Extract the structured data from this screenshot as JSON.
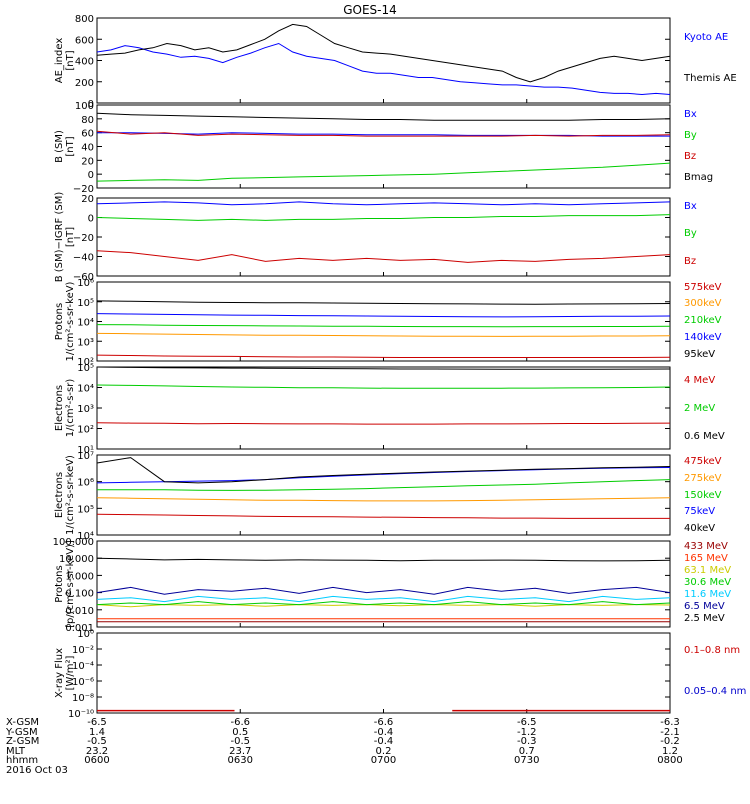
{
  "chart_data": {
    "type": "line",
    "title": "GOES-14",
    "x_ticks": [
      "0600",
      "0630",
      "0700",
      "0730",
      "0800"
    ],
    "x_range_hhmm": [
      "0600",
      "0800"
    ],
    "panels": [
      {
        "ylabel": [
          "AE_index",
          "[nT]"
        ],
        "scale": "linear",
        "ylim": [
          0,
          800
        ],
        "yticks": [
          "800",
          "600",
          "400",
          "200",
          "0"
        ],
        "series": [
          {
            "name": "Kyoto AE",
            "color": "#0000ff",
            "values": [
              480,
              500,
              540,
              520,
              480,
              460,
              430,
              440,
              420,
              380,
              430,
              470,
              520,
              560,
              480,
              440,
              420,
              400,
              350,
              300,
              280,
              280,
              260,
              240,
              240,
              220,
              200,
              190,
              180,
              170,
              170,
              160,
              150,
              150,
              140,
              120,
              100,
              90,
              90,
              80,
              90,
              80
            ]
          },
          {
            "name": "Themis AE",
            "color": "#000000",
            "values": [
              450,
              460,
              470,
              500,
              520,
              560,
              540,
              500,
              520,
              480,
              500,
              550,
              600,
              680,
              740,
              720,
              640,
              560,
              520,
              480,
              470,
              460,
              440,
              420,
              400,
              380,
              360,
              340,
              320,
              300,
              240,
              200,
              240,
              300,
              340,
              380,
              420,
              440,
              420,
              400,
              420,
              440
            ]
          }
        ]
      },
      {
        "ylabel": [
          "B (SM)",
          "[nT]"
        ],
        "scale": "linear",
        "ylim": [
          -20,
          100
        ],
        "yticks": [
          "100",
          "80",
          "60",
          "40",
          "20",
          "0",
          "−20"
        ],
        "series": [
          {
            "name": "Bx",
            "color": "#0000ff",
            "values": [
              60,
              60,
              59,
              58,
              60,
              59,
              58,
              58,
              57,
              57,
              57,
              56,
              56,
              56,
              56,
              55,
              55,
              55
            ]
          },
          {
            "name": "By",
            "color": "#00cc00",
            "values": [
              -10,
              -9,
              -8,
              -9,
              -6,
              -5,
              -4,
              -3,
              -2,
              -1,
              0,
              2,
              4,
              6,
              8,
              10,
              13,
              16
            ]
          },
          {
            "name": "Bz",
            "color": "#cc0000",
            "values": [
              62,
              58,
              60,
              56,
              58,
              57,
              56,
              56,
              55,
              55,
              55,
              55,
              55,
              56,
              55,
              56,
              56,
              57
            ]
          },
          {
            "name": "Bmag",
            "color": "#000000",
            "values": [
              88,
              86,
              85,
              84,
              83,
              82,
              81,
              80,
              79,
              79,
              78,
              78,
              78,
              78,
              78,
              79,
              79,
              80
            ]
          }
        ]
      },
      {
        "ylabel": [
          "B (SM)−IGRF (SM)",
          "[nT]"
        ],
        "scale": "linear",
        "ylim": [
          -60,
          20
        ],
        "yticks": [
          "20",
          "0",
          "−20",
          "−40",
          "−60"
        ],
        "series": [
          {
            "name": "Bx",
            "color": "#0000ff",
            "values": [
              14,
              15,
              16,
              15,
              13,
              14,
              16,
              14,
              13,
              14,
              15,
              14,
              13,
              14,
              13,
              14,
              15,
              16
            ]
          },
          {
            "name": "By",
            "color": "#00cc00",
            "values": [
              0,
              -1,
              -2,
              -3,
              -2,
              -3,
              -2,
              -2,
              -1,
              -1,
              0,
              0,
              1,
              1,
              2,
              2,
              2,
              3
            ]
          },
          {
            "name": "Bz",
            "color": "#cc0000",
            "values": [
              -34,
              -36,
              -40,
              -44,
              -38,
              -45,
              -42,
              -44,
              -42,
              -44,
              -43,
              -46,
              -44,
              -45,
              -43,
              -42,
              -40,
              -38
            ]
          }
        ]
      },
      {
        "ylabel": [
          "Protons",
          "1/(cm²-s-sr-keV)"
        ],
        "scale": "log",
        "ylim": [
          100,
          1000000
        ],
        "yticks": [
          "10⁶",
          "10⁵",
          "10⁴",
          "10³",
          "10²"
        ],
        "series": [
          {
            "name": "575keV",
            "color": "#cc0000",
            "values": [
              200,
              190,
              180,
              175,
              170,
              165,
              160,
              160,
              155,
              150,
              150,
              150,
              150,
              150,
              150,
              150,
              150,
              155
            ]
          },
          {
            "name": "300keV",
            "color": "#ff9900",
            "values": [
              2500,
              2400,
              2300,
              2200,
              2100,
              2000,
              2000,
              1950,
              1900,
              1850,
              1800,
              1800,
              1750,
              1800,
              1800,
              1850,
              1850,
              1900
            ]
          },
          {
            "name": "210keV",
            "color": "#00cc00",
            "values": [
              7000,
              6800,
              6500,
              6300,
              6200,
              6000,
              5900,
              5800,
              5700,
              5600,
              5500,
              5500,
              5400,
              5500,
              5500,
              5600,
              5600,
              5700
            ]
          },
          {
            "name": "140keV",
            "color": "#0000ff",
            "values": [
              25000,
              24000,
              23000,
              22000,
              21000,
              20500,
              20000,
              19500,
              19000,
              18500,
              18000,
              17500,
              17000,
              17500,
              18000,
              18500,
              18500,
              19000
            ]
          },
          {
            "name": "95keV",
            "color": "#000000",
            "values": [
              110000,
              105000,
              100000,
              95000,
              92000,
              90000,
              88000,
              86000,
              84000,
              82000,
              80000,
              78000,
              76000,
              75000,
              77000,
              78000,
              80000,
              82000
            ]
          }
        ]
      },
      {
        "ylabel": [
          "Electrons",
          "1/(cm²-s-sr)"
        ],
        "scale": "log",
        "ylim": [
          1,
          100000
        ],
        "yticks": [
          "10⁵",
          "10⁴",
          "10³",
          "10²",
          "10¹"
        ],
        "series": [
          {
            "name": "4 MeV",
            "color": "#cc0000",
            "values": [
              40,
              38,
              37,
              35,
              36,
              35,
              34,
              34,
              33,
              33,
              33,
              34,
              34,
              35,
              36,
              36,
              37,
              38
            ]
          },
          {
            "name": "2 MeV",
            "color": "#00cc00",
            "values": [
              8000,
              7500,
              7000,
              6500,
              6000,
              5800,
              5500,
              5400,
              5200,
              5000,
              5000,
              5000,
              5100,
              5200,
              5300,
              5500,
              5600,
              6000
            ]
          },
          {
            "name": "0.6 MeV",
            "color": "#000000",
            "values": [
              100000,
              95000,
              90000,
              88000,
              86000,
              84000,
              82000,
              80000,
              78000,
              76000,
              75000,
              74000,
              73000,
              72000,
              72000,
              73000,
              74000,
              75000
            ]
          }
        ]
      },
      {
        "ylabel": [
          "Electrons",
          "1/(cm²-s-sr-keV)"
        ],
        "scale": "log",
        "ylim": [
          10000,
          10000000
        ],
        "yticks": [
          "10⁷",
          "10⁶",
          "10⁵",
          "10⁴"
        ],
        "series": [
          {
            "name": "475keV",
            "color": "#cc0000",
            "values": [
              60000,
              58000,
              56000,
              54000,
              52000,
              50000,
              49000,
              48000,
              47000,
              46000,
              45000,
              44000,
              43000,
              43000,
              42000,
              42000,
              42000,
              42000
            ]
          },
          {
            "name": "275keV",
            "color": "#ff9900",
            "values": [
              250000,
              240000,
              230000,
              220000,
              210000,
              200000,
              200000,
              195000,
              190000,
              190000,
              190000,
              195000,
              200000,
              210000,
              220000,
              230000,
              240000,
              250000
            ]
          },
          {
            "name": "150keV",
            "color": "#00cc00",
            "values": [
              500000,
              500000,
              500000,
              480000,
              470000,
              480000,
              500000,
              520000,
              550000,
              600000,
              650000,
              700000,
              750000,
              800000,
              900000,
              1000000,
              1100000,
              1200000
            ]
          },
          {
            "name": "75keV",
            "color": "#0000ff",
            "values": [
              900000,
              950000,
              1000000,
              1050000,
              1100000,
              1200000,
              1400000,
              1600000,
              1800000,
              2000000,
              2200000,
              2400000,
              2600000,
              2800000,
              3000000,
              3200000,
              3300000,
              3400000
            ]
          },
          {
            "name": "40keV",
            "color": "#000000",
            "values": [
              5000000,
              8000000,
              1000000,
              900000,
              1000000,
              1200000,
              1500000,
              1700000,
              1900000,
              2100000,
              2300000,
              2500000,
              2700000,
              2900000,
              3100000,
              3300000,
              3500000,
              3700000
            ]
          }
        ]
      },
      {
        "ylabel": [
          "Protons",
          "[p/(cm²-s-sr-keV)]"
        ],
        "scale": "log",
        "ylim": [
          0.001,
          100
        ],
        "yticks": [
          "100.000",
          "10.000",
          "1.000",
          "0.100",
          "0.010",
          "0.001"
        ],
        "series": [
          {
            "name": "433 MeV",
            "color": "#990000",
            "values": [
              0.002,
              0.002,
              0.002,
              0.002,
              0.002,
              0.002,
              0.002,
              0.002,
              0.002,
              0.002,
              0.002,
              0.002,
              0.002,
              0.002,
              0.002,
              0.002,
              0.002,
              0.002
            ]
          },
          {
            "name": "165 MeV",
            "color": "#ff3300",
            "values": [
              0.003,
              0.003,
              0.003,
              0.003,
              0.003,
              0.003,
              0.003,
              0.003,
              0.003,
              0.003,
              0.003,
              0.003,
              0.003,
              0.003,
              0.003,
              0.003,
              0.003,
              0.003
            ]
          },
          {
            "name": "63.1 MeV",
            "color": "#cccc00",
            "values": [
              0.02,
              0.015,
              0.02,
              0.018,
              0.02,
              0.016,
              0.02,
              0.018,
              0.02,
              0.017,
              0.02,
              0.018,
              0.02,
              0.016,
              0.02,
              0.018,
              0.02,
              0.019
            ]
          },
          {
            "name": "30.6 MeV",
            "color": "#00cc00",
            "values": [
              0.02,
              0.025,
              0.02,
              0.03,
              0.02,
              0.025,
              0.02,
              0.03,
              0.02,
              0.025,
              0.02,
              0.03,
              0.02,
              0.025,
              0.02,
              0.03,
              0.02,
              0.025
            ]
          },
          {
            "name": "11.6 MeV",
            "color": "#00ccff",
            "values": [
              0.04,
              0.05,
              0.03,
              0.06,
              0.04,
              0.05,
              0.03,
              0.06,
              0.04,
              0.05,
              0.03,
              0.06,
              0.04,
              0.05,
              0.03,
              0.06,
              0.04,
              0.05
            ]
          },
          {
            "name": "6.5 MeV",
            "color": "#000099",
            "values": [
              0.1,
              0.2,
              0.08,
              0.15,
              0.12,
              0.18,
              0.09,
              0.2,
              0.1,
              0.15,
              0.08,
              0.2,
              0.12,
              0.18,
              0.09,
              0.15,
              0.2,
              0.1
            ]
          },
          {
            "name": "2.5 MeV",
            "color": "#000000",
            "values": [
              10,
              9,
              8,
              8.5,
              8,
              7.5,
              8,
              7.8,
              7.5,
              7.2,
              7.5,
              7.6,
              7.8,
              7.5,
              7.2,
              7.0,
              7.2,
              7.5
            ]
          }
        ]
      },
      {
        "ylabel": [
          "X-ray Flux",
          "[W/m²]"
        ],
        "scale": "log",
        "ylim": [
          1e-10,
          1
        ],
        "yticks": [
          "10⁰",
          "10⁻²",
          "10⁻⁴",
          "10⁻⁶",
          "10⁻⁸",
          "10⁻¹⁰"
        ],
        "series": [
          {
            "name": "0.1–0.8 nm",
            "color": "#cc0000",
            "segments": [
              {
                "x": [
                  0,
                  0.24
                ],
                "value": 2e-10
              },
              {
                "x": [
                  0.62,
                  1.0
                ],
                "value": 2e-10
              }
            ]
          },
          {
            "name": "0.05–0.4 nm",
            "color": "#0000cc",
            "segments": []
          }
        ]
      }
    ],
    "ephemeris": {
      "rows": [
        {
          "label": "X-GSM",
          "values": [
            "-6.5",
            "-6.6",
            "-6.6",
            "-6.5",
            "-6.3"
          ]
        },
        {
          "label": "Y-GSM",
          "values": [
            "1.4",
            "0.5",
            "-0.4",
            "-1.2",
            "-2.1"
          ]
        },
        {
          "label": "Z-GSM",
          "values": [
            "-0.5",
            "-0.5",
            "-0.4",
            "-0.3",
            "-0.2"
          ]
        },
        {
          "label": "MLT",
          "values": [
            "23.2",
            "23.7",
            "0.2",
            "0.7",
            "1.2"
          ]
        },
        {
          "label": "hhmm",
          "values": [
            "0600",
            "0630",
            "0700",
            "0730",
            "0800"
          ]
        }
      ],
      "date": "2016 Oct 03"
    }
  }
}
